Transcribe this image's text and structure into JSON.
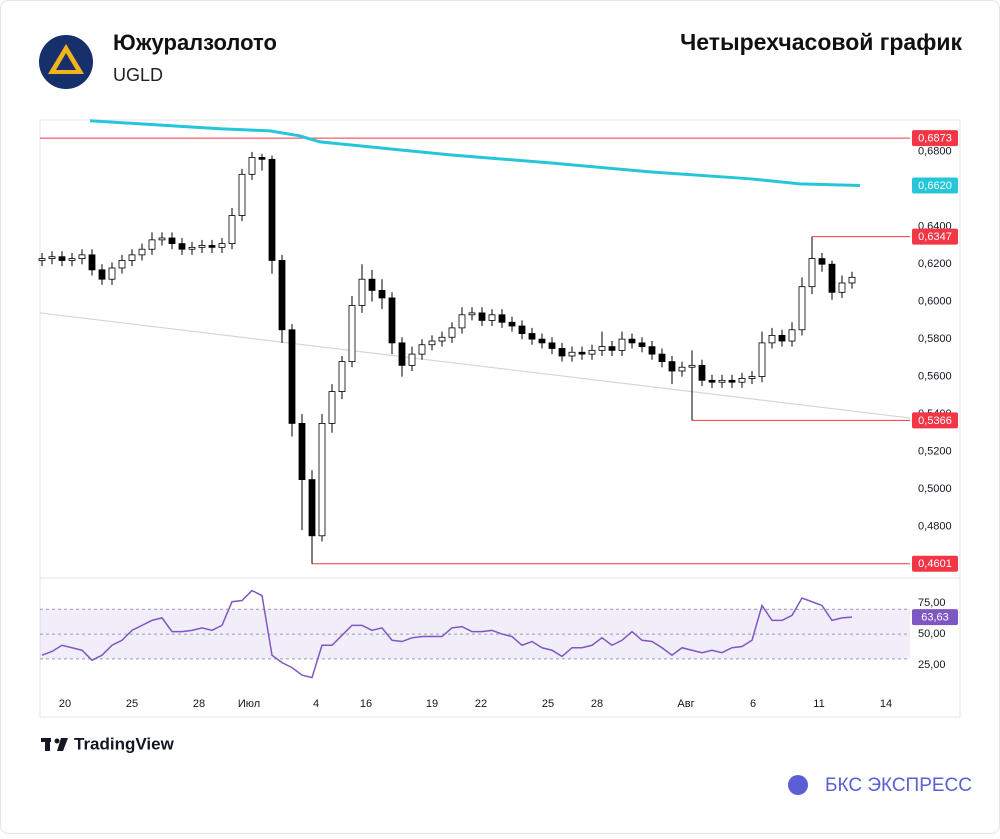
{
  "header": {
    "company": "Южуралзолото",
    "ticker": "UGLD",
    "title": "Четырехчасовой график"
  },
  "footer": {
    "platform": "TradingView",
    "brand": "БКС ЭКСПРЕСС"
  },
  "chart_data": {
    "type": "candlestick",
    "xlim": [
      -0.2,
      91.8
    ],
    "xticks": [
      {
        "value": 2.3,
        "label": "20"
      },
      {
        "value": 9.0,
        "label": "25"
      },
      {
        "value": 15.7,
        "label": "28"
      },
      {
        "value": 20.7,
        "label": "Июл"
      },
      {
        "value": 27.4,
        "label": "4"
      },
      {
        "value": 32.4,
        "label": "16"
      },
      {
        "value": 39.0,
        "label": "19"
      },
      {
        "value": 43.9,
        "label": "22"
      },
      {
        "value": 50.6,
        "label": "25"
      },
      {
        "value": 55.5,
        "label": "28"
      },
      {
        "value": 64.4,
        "label": "Авг"
      },
      {
        "value": 71.1,
        "label": "6"
      },
      {
        "value": 77.7,
        "label": "11"
      },
      {
        "value": 84.4,
        "label": "14"
      }
    ],
    "ylim": [
      0.453,
      0.697
    ],
    "yticks": [
      {
        "value": 0.48,
        "label": "0,4800"
      },
      {
        "value": 0.5,
        "label": "0,5000"
      },
      {
        "value": 0.52,
        "label": "0,5200"
      },
      {
        "value": 0.54,
        "label": "0,5400"
      },
      {
        "value": 0.56,
        "label": "0,5600"
      },
      {
        "value": 0.58,
        "label": "0,5800"
      },
      {
        "value": 0.6,
        "label": "0,6000"
      },
      {
        "value": 0.62,
        "label": "0,6200"
      },
      {
        "value": 0.64,
        "label": "0,6400"
      },
      {
        "value": 0.66,
        "label": "0,6600"
      },
      {
        "value": 0.68,
        "label": "0,6800"
      }
    ],
    "up_color": "#ffffff",
    "down_color": "#000000",
    "candles": {
      "open": [
        0.622,
        0.623,
        0.624,
        0.622,
        0.623,
        0.625,
        0.617,
        0.612,
        0.618,
        0.622,
        0.625,
        0.628,
        0.633,
        0.634,
        0.631,
        0.628,
        0.629,
        0.63,
        0.629,
        0.631,
        0.646,
        0.668,
        0.677,
        0.676,
        0.622,
        0.585,
        0.535,
        0.505,
        0.475,
        0.535,
        0.552,
        0.568,
        0.598,
        0.612,
        0.606,
        0.602,
        0.578,
        0.566,
        0.572,
        0.577,
        0.579,
        0.581,
        0.586,
        0.593,
        0.594,
        0.59,
        0.593,
        0.589,
        0.587,
        0.583,
        0.58,
        0.578,
        0.575,
        0.571,
        0.573,
        0.572,
        0.574,
        0.576,
        0.574,
        0.58,
        0.578,
        0.576,
        0.572,
        0.568,
        0.563,
        0.565,
        0.566,
        0.558,
        0.557,
        0.558,
        0.557,
        0.559,
        0.56,
        0.578,
        0.582,
        0.579,
        0.585,
        0.608,
        0.623,
        0.62,
        0.605,
        0.61
      ],
      "high": [
        0.626,
        0.627,
        0.627,
        0.626,
        0.628,
        0.628,
        0.62,
        0.621,
        0.625,
        0.628,
        0.631,
        0.637,
        0.637,
        0.637,
        0.634,
        0.632,
        0.633,
        0.633,
        0.634,
        0.65,
        0.671,
        0.68,
        0.679,
        0.678,
        0.625,
        0.588,
        0.54,
        0.51,
        0.54,
        0.556,
        0.571,
        0.603,
        0.62,
        0.617,
        0.612,
        0.605,
        0.581,
        0.576,
        0.58,
        0.582,
        0.584,
        0.589,
        0.597,
        0.597,
        0.597,
        0.596,
        0.596,
        0.592,
        0.59,
        0.586,
        0.583,
        0.581,
        0.578,
        0.576,
        0.576,
        0.577,
        0.584,
        0.579,
        0.584,
        0.583,
        0.581,
        0.579,
        0.575,
        0.571,
        0.568,
        0.574,
        0.569,
        0.561,
        0.561,
        0.561,
        0.562,
        0.563,
        0.584,
        0.586,
        0.585,
        0.589,
        0.613,
        0.6347,
        0.626,
        0.622,
        0.614,
        0.616
      ],
      "low": [
        0.619,
        0.62,
        0.619,
        0.619,
        0.62,
        0.614,
        0.609,
        0.609,
        0.615,
        0.619,
        0.622,
        0.625,
        0.63,
        0.628,
        0.625,
        0.625,
        0.626,
        0.626,
        0.626,
        0.628,
        0.643,
        0.665,
        0.67,
        0.615,
        0.578,
        0.528,
        0.478,
        0.4601,
        0.472,
        0.53,
        0.548,
        0.565,
        0.594,
        0.6,
        0.596,
        0.572,
        0.56,
        0.563,
        0.569,
        0.574,
        0.576,
        0.578,
        0.583,
        0.59,
        0.587,
        0.587,
        0.586,
        0.584,
        0.58,
        0.577,
        0.575,
        0.572,
        0.568,
        0.568,
        0.569,
        0.569,
        0.571,
        0.571,
        0.571,
        0.575,
        0.573,
        0.569,
        0.565,
        0.556,
        0.56,
        0.5366,
        0.555,
        0.554,
        0.554,
        0.554,
        0.554,
        0.556,
        0.557,
        0.575,
        0.576,
        0.576,
        0.582,
        0.604,
        0.616,
        0.601,
        0.602,
        0.607
      ],
      "close": [
        0.623,
        0.624,
        0.622,
        0.623,
        0.625,
        0.617,
        0.612,
        0.618,
        0.622,
        0.625,
        0.628,
        0.633,
        0.634,
        0.631,
        0.628,
        0.629,
        0.63,
        0.629,
        0.631,
        0.646,
        0.668,
        0.677,
        0.676,
        0.622,
        0.585,
        0.535,
        0.505,
        0.475,
        0.535,
        0.552,
        0.568,
        0.598,
        0.612,
        0.606,
        0.602,
        0.578,
        0.566,
        0.572,
        0.577,
        0.579,
        0.581,
        0.586,
        0.593,
        0.594,
        0.59,
        0.593,
        0.589,
        0.587,
        0.583,
        0.58,
        0.578,
        0.575,
        0.571,
        0.573,
        0.572,
        0.574,
        0.576,
        0.574,
        0.58,
        0.578,
        0.576,
        0.572,
        0.568,
        0.563,
        0.565,
        0.566,
        0.558,
        0.557,
        0.558,
        0.557,
        0.559,
        0.56,
        0.578,
        0.582,
        0.579,
        0.585,
        0.608,
        0.623,
        0.62,
        0.605,
        0.61,
        0.613
      ]
    },
    "level_color": "#f23645",
    "levels": [
      {
        "value": 0.6873,
        "label": "0,6873"
      },
      {
        "value": 0.6347,
        "label": "0,6347"
      },
      {
        "value": 0.5366,
        "label": "0,5366"
      },
      {
        "value": 0.4601,
        "label": "0,4601"
      }
    ],
    "ma": {
      "color": "#26c6da",
      "x": [
        4.8,
        17.8,
        22.8,
        25.8,
        27.8,
        33.8,
        40.8,
        50.8,
        60.8,
        70.8,
        75.8,
        81.8
      ],
      "values": [
        0.6966,
        0.6923,
        0.6912,
        0.6885,
        0.6853,
        0.6821,
        0.6784,
        0.6741,
        0.6693,
        0.6656,
        0.6629,
        0.662
      ],
      "last_label": "0,6620"
    },
    "trendline": {
      "color": "#d6d6d6",
      "x": [
        -0.2,
        86.8
      ],
      "values": [
        0.594,
        0.5379
      ]
    },
    "rsi": {
      "color": "#7e57c2",
      "ylim": [
        5,
        93.5
      ],
      "yticks": [
        {
          "value": 75,
          "label": "75,00"
        },
        {
          "value": 50,
          "label": "50,00"
        },
        {
          "value": 25,
          "label": "25,00"
        }
      ],
      "levels": [
        30,
        50,
        70
      ],
      "values": [
        33,
        36,
        41,
        39,
        37,
        29,
        33,
        41,
        45,
        53,
        57,
        61,
        63,
        52,
        52,
        53,
        55,
        53,
        57,
        76,
        77,
        85,
        81,
        33,
        27,
        23,
        17,
        15,
        41,
        41,
        49,
        57,
        57,
        53,
        55,
        45,
        44,
        47,
        48,
        48,
        48,
        55,
        56,
        52,
        52,
        53,
        50,
        48,
        41,
        44,
        39,
        37,
        32,
        39,
        39,
        41,
        47,
        41,
        45,
        52,
        45,
        44,
        39,
        33,
        39,
        37,
        35,
        37,
        35,
        39,
        40,
        45,
        73,
        61,
        61,
        65,
        79,
        76,
        73,
        61,
        63,
        63.63
      ],
      "last_label": "63,63"
    }
  }
}
